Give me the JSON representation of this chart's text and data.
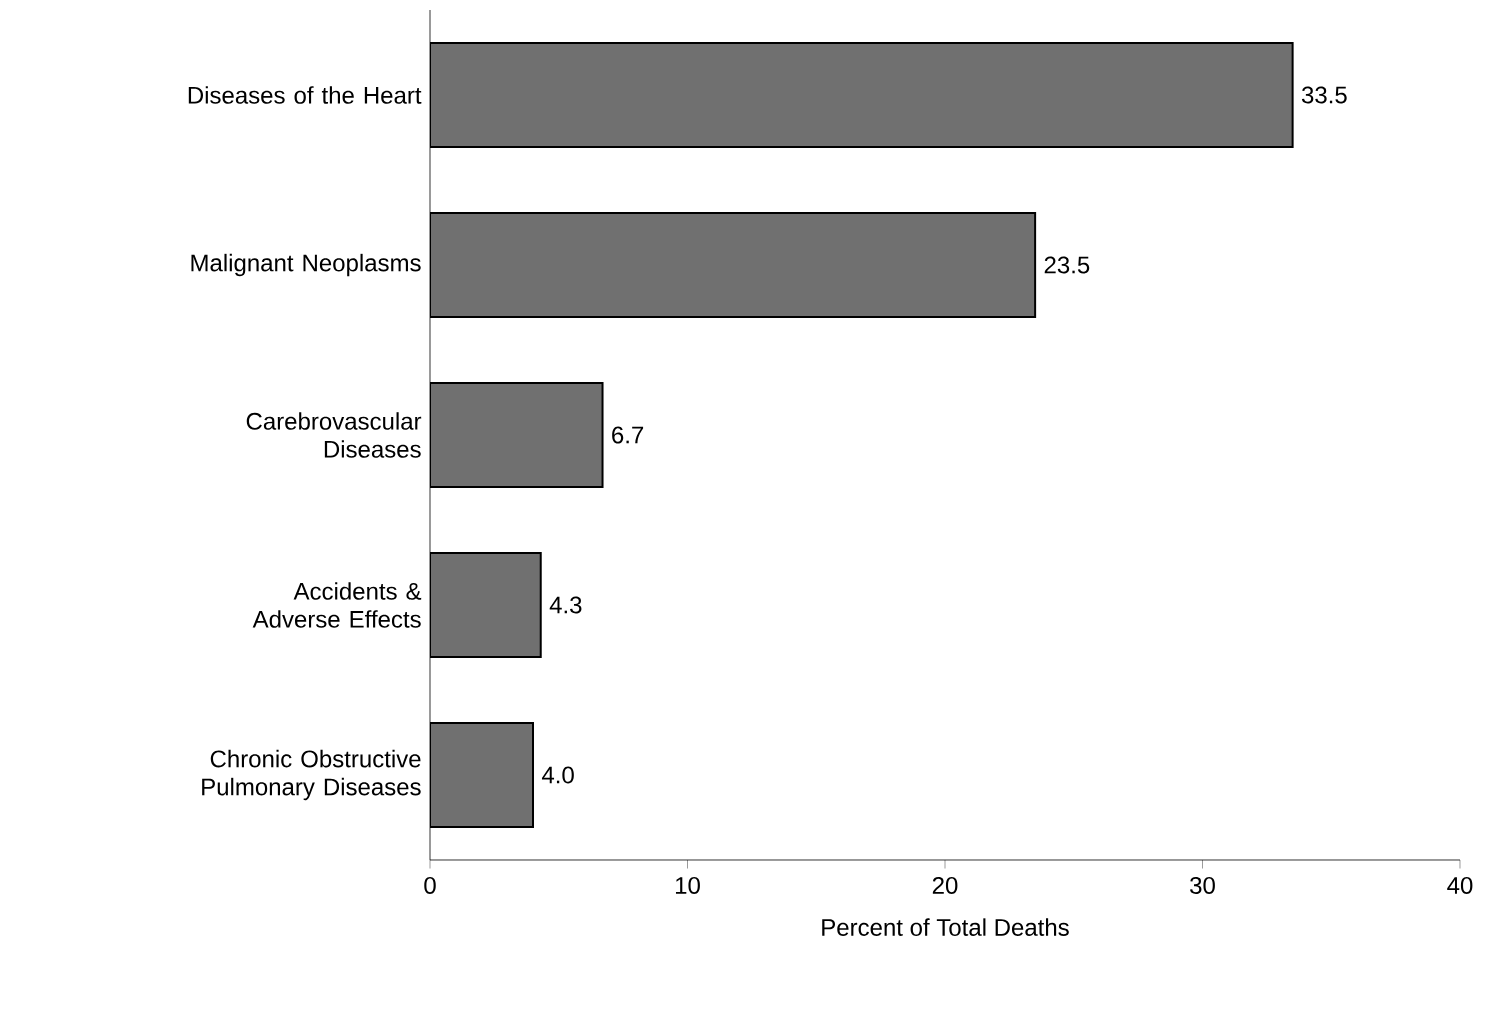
{
  "chart_data": {
    "type": "bar",
    "orientation": "horizontal",
    "categories": [
      "Diseases of the Heart",
      "Malignant Neoplasms",
      "Carebrovascular Diseases",
      "Accidents & Adverse Effects",
      "Chronic Obstructive Pulmonary Diseases"
    ],
    "values": [
      33.5,
      23.5,
      6.7,
      4.3,
      4.0
    ],
    "value_labels": [
      "33.5",
      "23.5",
      "6.7",
      "4.3",
      "4.0"
    ],
    "color": "#707070",
    "xlabel": "Percent of Total Deaths",
    "xlim": [
      0,
      40
    ],
    "xticks": [
      0,
      10,
      20,
      30,
      40
    ]
  }
}
